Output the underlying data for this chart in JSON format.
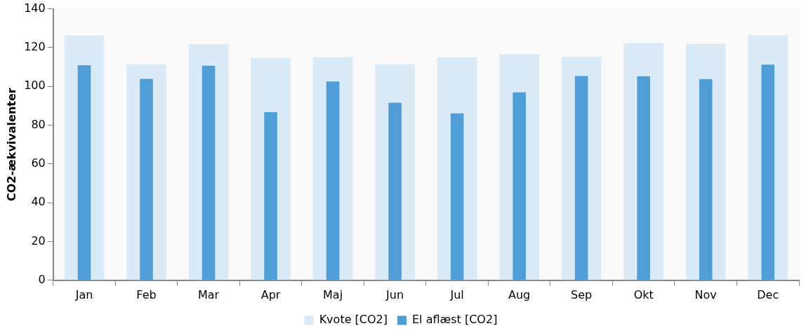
{
  "chart_data": {
    "type": "bar",
    "ylabel": "CO2-ækvivalenter",
    "categories": [
      "Jan",
      "Feb",
      "Mar",
      "Apr",
      "Maj",
      "Jun",
      "Jul",
      "Aug",
      "Sep",
      "Okt",
      "Nov",
      "Dec"
    ],
    "series": [
      {
        "name": "Kvote [CO2]",
        "color": "#dbeaf7",
        "values": [
          126.2,
          111.4,
          121.7,
          114.7,
          115.1,
          111.4,
          115.0,
          116.6,
          115.3,
          122.3,
          122.0,
          126.4
        ]
      },
      {
        "name": "El aflæst [CO2]",
        "color": "#4f9ed8",
        "values": [
          110.9,
          103.9,
          110.7,
          86.7,
          102.5,
          91.6,
          86.1,
          96.9,
          105.3,
          105.2,
          103.8,
          111.2
        ]
      }
    ],
    "ylim": [
      0,
      140
    ],
    "yticks": [
      0,
      20,
      40,
      60,
      80,
      100,
      120,
      140
    ],
    "grid": false,
    "legend": "bottom"
  }
}
